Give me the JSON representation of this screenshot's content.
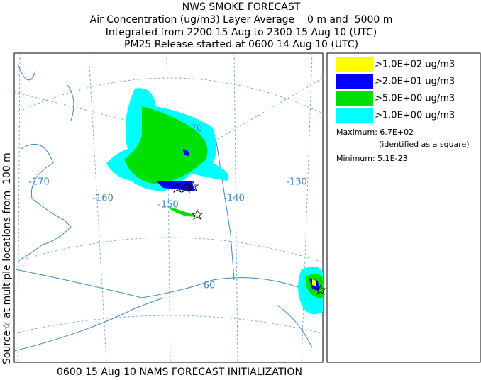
{
  "header": {
    "lines": [
      "NWS SMOKE FORECAST",
      "Air Concentration (ug/m3) Layer Average    0 m and  5000 m",
      "Integrated from 2200 15 Aug to 2300 15 Aug 10 (UTC)",
      "PM25 Release started at 0600 14 Aug 10 (UTC)"
    ]
  },
  "side_label": "Source☆ at multiple locations from  100 m",
  "map": {
    "labels": [
      "70",
      "-170",
      "-160",
      "-150",
      "-140",
      "-130",
      "60"
    ]
  },
  "legend": {
    "items": [
      {
        "label": ">1.0E+02 ug/m3",
        "color": "#ffff00"
      },
      {
        "label": ">2.0E+01 ug/m3",
        "color": "#0000ff"
      },
      {
        "label": ">5.0E+00 ug/m3",
        "color": "#00e000"
      },
      {
        "label": ">1.0E+00 ug/m3",
        "color": "#00ffff"
      }
    ],
    "maximum": "Maximum: 6.7E+02",
    "maximum_note": "(identified as a square)",
    "minimum": "Minimum: 5.1E-23"
  },
  "footer": "0600 15 Aug 10 NAMS FORECAST INITIALIZATION"
}
